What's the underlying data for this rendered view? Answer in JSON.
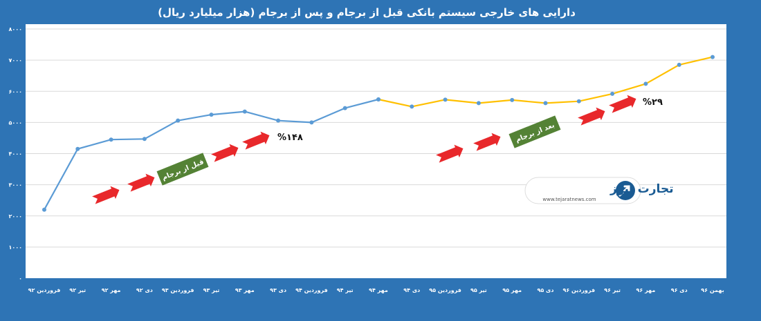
{
  "colors": {
    "background": "#2e74b5",
    "plot_area": "#ffffff",
    "gridline": "#d9d9d9",
    "before_series": "#5b9bd5",
    "after_series": "#ffc000",
    "arrow": "#e8282b",
    "label_box": "#548235",
    "logo": "#1a5b93"
  },
  "chart_data": {
    "type": "line",
    "title": "دارایی های خارجی سیستم بانکی قبل از برجام و پس از برجام (هزار میلیارد ریال)",
    "x_direction": "right-to-left",
    "categories": [
      "فروردین ۹۲",
      "تیر ۹۲",
      "مهر ۹۲",
      "دی ۹۲",
      "فروردین ۹۳",
      "تیر ۹۳",
      "مهر ۹۳",
      "دی ۹۳",
      "فروردین ۹۴",
      "تیر ۹۴",
      "مهر ۹۴",
      "دی ۹۴",
      "فروردین ۹۵",
      "تیر ۹۵",
      "مهر ۹۵",
      "دی ۹۵",
      "فروردین ۹۶",
      "تیر ۹۶",
      "مهر ۹۶",
      "دی ۹۶",
      "بهمن ۹۶"
    ],
    "series": [
      {
        "segment": "before",
        "values": [
          2200,
          4150,
          4450,
          4470,
          5060,
          5250,
          5350,
          5060,
          5000,
          5460,
          5740,
          null,
          null,
          null,
          null,
          null,
          null,
          null,
          null,
          null,
          null
        ]
      },
      {
        "segment": "after",
        "values": [
          null,
          null,
          null,
          null,
          null,
          null,
          null,
          null,
          null,
          null,
          5740,
          5510,
          5730,
          5620,
          5720,
          5620,
          5680,
          5920,
          6240,
          6850,
          7100
        ]
      }
    ],
    "yticks": [
      "۰",
      "۱۰۰۰",
      "۲۰۰۰",
      "۳۰۰۰",
      "۴۰۰۰",
      "۵۰۰۰",
      "۶۰۰۰",
      "۷۰۰۰",
      "۸۰۰۰"
    ],
    "ylim": [
      0,
      8000
    ],
    "grid": true,
    "legend": "none",
    "annotations": {
      "before_label": "قبل از برجام",
      "before_pct": "%۱۴۸",
      "after_label": "بعد از برجام",
      "after_pct": "%۲۹"
    }
  },
  "logo": {
    "name": "تجارت نیوز",
    "url_text": "www.tejaratnews.com"
  }
}
